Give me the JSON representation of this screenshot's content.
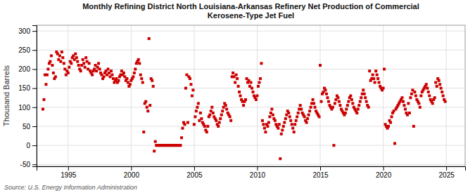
{
  "chart_data": {
    "type": "scatter",
    "title": "Monthly Refining District North Louisiana-Arkansas Refinery Net Production of Commercial\nKerosene-Type Jet Fuel",
    "ylabel": "Thousand Barrels",
    "annotations": [
      "Source: U.S. Energy Information Administration"
    ],
    "color": "#cc0000",
    "marker": "square",
    "grid": true,
    "xlim": [
      1992.5,
      2026.5
    ],
    "ylim": [
      -55,
      315
    ],
    "xticks": [
      1995,
      2000,
      2005,
      2010,
      2015,
      2020,
      2025
    ],
    "yticks": [
      -50,
      0,
      50,
      100,
      150,
      200,
      250,
      300
    ],
    "x": [
      1993.0,
      1993.083,
      1993.167,
      1993.25,
      1993.333,
      1993.417,
      1993.5,
      1993.583,
      1993.667,
      1993.75,
      1993.833,
      1993.917,
      1994.0,
      1994.083,
      1994.167,
      1994.25,
      1994.333,
      1994.417,
      1994.5,
      1994.583,
      1994.667,
      1994.75,
      1994.833,
      1994.917,
      1995.0,
      1995.083,
      1995.167,
      1995.25,
      1995.333,
      1995.417,
      1995.5,
      1995.583,
      1995.667,
      1995.75,
      1995.833,
      1995.917,
      1996.0,
      1996.083,
      1996.167,
      1996.25,
      1996.333,
      1996.417,
      1996.5,
      1996.583,
      1996.667,
      1996.75,
      1996.833,
      1996.917,
      1997.0,
      1997.083,
      1997.167,
      1997.25,
      1997.333,
      1997.417,
      1997.5,
      1997.583,
      1997.667,
      1997.75,
      1997.833,
      1997.917,
      1998.0,
      1998.083,
      1998.167,
      1998.25,
      1998.333,
      1998.417,
      1998.5,
      1998.583,
      1998.667,
      1998.75,
      1998.833,
      1998.917,
      1999.0,
      1999.083,
      1999.167,
      1999.25,
      1999.333,
      1999.417,
      1999.5,
      1999.583,
      1999.667,
      1999.75,
      1999.833,
      1999.917,
      2000.0,
      2000.083,
      2000.167,
      2000.25,
      2000.333,
      2000.417,
      2000.5,
      2000.583,
      2000.667,
      2000.75,
      2000.833,
      2000.917,
      2001.0,
      2001.083,
      2001.167,
      2001.25,
      2001.333,
      2001.417,
      2001.5,
      2001.583,
      2001.667,
      2001.75,
      2001.833,
      2001.917,
      2002.0,
      2002.083,
      2002.167,
      2002.25,
      2002.333,
      2002.417,
      2002.5,
      2002.583,
      2002.667,
      2002.75,
      2002.833,
      2002.917,
      2003.0,
      2003.083,
      2003.167,
      2003.25,
      2003.333,
      2003.417,
      2003.5,
      2003.583,
      2003.667,
      2003.75,
      2003.833,
      2003.917,
      2004.0,
      2004.083,
      2004.167,
      2004.25,
      2004.333,
      2004.417,
      2004.5,
      2004.583,
      2004.667,
      2004.75,
      2004.833,
      2004.917,
      2005.0,
      2005.083,
      2005.167,
      2005.25,
      2005.333,
      2005.417,
      2005.5,
      2005.583,
      2005.667,
      2005.75,
      2005.833,
      2005.917,
      2006.0,
      2006.083,
      2006.167,
      2006.25,
      2006.333,
      2006.417,
      2006.5,
      2006.583,
      2006.667,
      2006.75,
      2006.833,
      2006.917,
      2007.0,
      2007.083,
      2007.167,
      2007.25,
      2007.333,
      2007.417,
      2007.5,
      2007.583,
      2007.667,
      2007.75,
      2007.833,
      2007.917,
      2008.0,
      2008.083,
      2008.167,
      2008.25,
      2008.333,
      2008.417,
      2008.5,
      2008.583,
      2008.667,
      2008.75,
      2008.833,
      2008.917,
      2009.0,
      2009.083,
      2009.167,
      2009.25,
      2009.333,
      2009.417,
      2009.5,
      2009.583,
      2009.667,
      2009.75,
      2009.833,
      2009.917,
      2010.0,
      2010.083,
      2010.167,
      2010.25,
      2010.333,
      2010.417,
      2010.5,
      2010.583,
      2010.667,
      2010.75,
      2010.833,
      2010.917,
      2011.0,
      2011.083,
      2011.167,
      2011.25,
      2011.333,
      2011.417,
      2011.5,
      2011.583,
      2011.667,
      2011.75,
      2011.833,
      2011.917,
      2012.0,
      2012.083,
      2012.167,
      2012.25,
      2012.333,
      2012.417,
      2012.5,
      2012.583,
      2012.667,
      2012.75,
      2012.833,
      2012.917,
      2013.0,
      2013.083,
      2013.167,
      2013.25,
      2013.333,
      2013.417,
      2013.5,
      2013.583,
      2013.667,
      2013.75,
      2013.833,
      2013.917,
      2014.0,
      2014.083,
      2014.167,
      2014.25,
      2014.333,
      2014.417,
      2014.5,
      2014.583,
      2014.667,
      2014.75,
      2014.833,
      2014.917,
      2015.0,
      2015.083,
      2015.167,
      2015.25,
      2015.333,
      2015.417,
      2015.5,
      2015.583,
      2015.667,
      2015.75,
      2015.833,
      2015.917,
      2016.0,
      2016.083,
      2016.167,
      2016.25,
      2016.333,
      2016.417,
      2016.5,
      2016.583,
      2016.667,
      2016.75,
      2016.833,
      2016.917,
      2017.0,
      2017.083,
      2017.167,
      2017.25,
      2017.333,
      2017.417,
      2017.5,
      2017.583,
      2017.667,
      2017.75,
      2017.833,
      2017.917,
      2018.0,
      2018.083,
      2018.167,
      2018.25,
      2018.333,
      2018.417,
      2018.5,
      2018.583,
      2018.667,
      2018.75,
      2018.833,
      2018.917,
      2019.0,
      2019.083,
      2019.167,
      2019.25,
      2019.333,
      2019.417,
      2019.5,
      2019.583,
      2019.667,
      2019.75,
      2019.833,
      2019.917,
      2020.0,
      2020.083,
      2020.167,
      2020.25,
      2020.333,
      2020.417,
      2020.5,
      2020.583,
      2020.667,
      2020.75,
      2020.833,
      2020.917,
      2021.0,
      2021.083,
      2021.167,
      2021.25,
      2021.333,
      2021.417,
      2021.5,
      2021.583,
      2021.667,
      2021.75,
      2021.833,
      2021.917,
      2022.0,
      2022.083,
      2022.167,
      2022.25,
      2022.333,
      2022.417,
      2022.5,
      2022.583,
      2022.667,
      2022.75,
      2022.833,
      2022.917,
      2023.0,
      2023.083,
      2023.167,
      2023.25,
      2023.333,
      2023.417,
      2023.5,
      2023.583,
      2023.667,
      2023.75,
      2023.833,
      2023.917,
      2024.0,
      2024.083,
      2024.167,
      2024.25,
      2024.333,
      2024.417,
      2024.5,
      2024.583,
      2024.667,
      2024.75,
      2024.833,
      2024.917
    ],
    "values": [
      95,
      120,
      185,
      160,
      185,
      200,
      215,
      220,
      235,
      210,
      190,
      175,
      180,
      245,
      240,
      225,
      235,
      220,
      245,
      230,
      215,
      200,
      185,
      195,
      190,
      205,
      220,
      215,
      230,
      235,
      225,
      240,
      230,
      220,
      210,
      200,
      195,
      210,
      225,
      215,
      205,
      230,
      220,
      200,
      215,
      195,
      190,
      185,
      195,
      200,
      210,
      195,
      205,
      215,
      200,
      190,
      185,
      175,
      180,
      190,
      195,
      185,
      200,
      190,
      180,
      195,
      185,
      175,
      165,
      170,
      175,
      165,
      170,
      180,
      185,
      195,
      185,
      190,
      180,
      170,
      175,
      165,
      155,
      160,
      170,
      175,
      180,
      190,
      200,
      215,
      220,
      225,
      215,
      185,
      175,
      165,
      35,
      110,
      115,
      100,
      90,
      280,
      105,
      175,
      170,
      155,
      -15,
      10,
      0,
      0,
      0,
      0,
      0,
      0,
      0,
      0,
      0,
      0,
      0,
      0,
      0,
      0,
      0,
      0,
      0,
      0,
      0,
      0,
      0,
      0,
      0,
      0,
      20,
      45,
      60,
      55,
      150,
      185,
      60,
      180,
      175,
      160,
      130,
      145,
      55,
      75,
      90,
      100,
      110,
      65,
      85,
      70,
      60,
      55,
      50,
      40,
      35,
      50,
      75,
      80,
      90,
      100,
      85,
      75,
      70,
      65,
      55,
      50,
      60,
      70,
      80,
      90,
      100,
      110,
      105,
      95,
      85,
      80,
      75,
      65,
      180,
      190,
      180,
      165,
      185,
      175,
      155,
      140,
      130,
      120,
      115,
      105,
      115,
      120,
      175,
      165,
      170,
      155,
      165,
      150,
      140,
      130,
      125,
      120,
      130,
      155,
      165,
      175,
      215,
      65,
      55,
      45,
      35,
      55,
      50,
      60,
      75,
      85,
      95,
      80,
      70,
      65,
      55,
      50,
      45,
      55,
      -35,
      30,
      40,
      50,
      60,
      70,
      80,
      90,
      85,
      75,
      65,
      55,
      45,
      35,
      55,
      65,
      75,
      85,
      95,
      105,
      95,
      85,
      80,
      75,
      65,
      60,
      70,
      80,
      90,
      100,
      110,
      120,
      110,
      100,
      90,
      85,
      80,
      75,
      210,
      115,
      135,
      140,
      150,
      145,
      135,
      125,
      115,
      105,
      100,
      95,
      100,
      0,
      110,
      120,
      130,
      125,
      115,
      105,
      95,
      90,
      85,
      80,
      85,
      95,
      105,
      115,
      125,
      130,
      120,
      110,
      100,
      95,
      90,
      85,
      95,
      105,
      115,
      125,
      135,
      145,
      135,
      125,
      115,
      105,
      100,
      195,
      170,
      175,
      185,
      175,
      165,
      195,
      185,
      175,
      165,
      155,
      150,
      145,
      150,
      200,
      55,
      50,
      45,
      50,
      65,
      60,
      75,
      85,
      90,
      5,
      95,
      100,
      105,
      110,
      115,
      120,
      125,
      115,
      105,
      95,
      85,
      80,
      110,
      85,
      125,
      135,
      145,
      50,
      140,
      130,
      120,
      115,
      110,
      100,
      130,
      140,
      145,
      150,
      155,
      160,
      150,
      140,
      130,
      120,
      115,
      110,
      120,
      125,
      165,
      155,
      175,
      170,
      160,
      150,
      140,
      130,
      120,
      115
    ]
  }
}
